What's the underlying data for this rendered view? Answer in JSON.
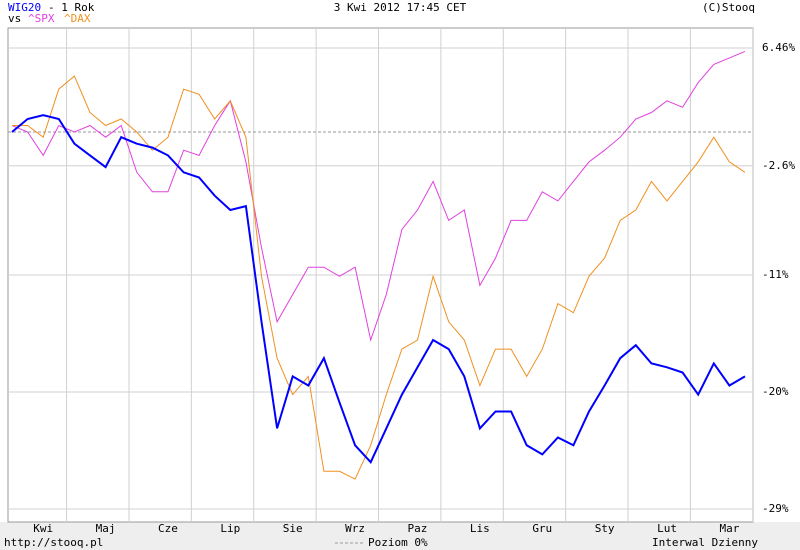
{
  "chart_data": {
    "type": "line",
    "title": "3 Kwi 2012 17:45 CET",
    "subtitle": "- 1 Rok",
    "vs_label": "vs",
    "copyright": "(C)Stooq",
    "source": "http://stooq.pl",
    "interval": "Interwal Dzienny",
    "reference": {
      "value": 0,
      "label": "Poziom 0%"
    },
    "categories": [
      null,
      null,
      "Kwi",
      null,
      null,
      null,
      "Maj",
      null,
      null,
      null,
      "Cze",
      null,
      null,
      null,
      "Lip",
      null,
      null,
      null,
      "Sie",
      null,
      null,
      null,
      "Wrz",
      null,
      null,
      null,
      "Paz",
      null,
      null,
      null,
      "Lis",
      null,
      null,
      null,
      "Gru",
      null,
      null,
      null,
      "Sty",
      null,
      null,
      null,
      "Lut",
      null,
      null,
      null,
      "Mar",
      null
    ],
    "series": [
      {
        "name": "WIG20",
        "color": "#0000ff",
        "values": [
          0.0,
          1.0,
          1.3,
          1.0,
          -0.9,
          -1.8,
          -2.7,
          -0.4,
          -0.9,
          -1.2,
          -1.8,
          -3.1,
          -3.5,
          -4.9,
          -6.0,
          -5.7,
          -14.6,
          -22.8,
          -18.8,
          -19.5,
          -17.4,
          -20.8,
          -24.1,
          -25.4,
          -22.8,
          -20.2,
          -18.1,
          -16.0,
          -16.7,
          -18.8,
          -22.8,
          -21.5,
          -21.5,
          -24.1,
          -24.8,
          -23.5,
          -24.1,
          -21.5,
          -19.5,
          -17.4,
          -16.4,
          -17.8,
          -18.1,
          -18.5,
          -20.2,
          -17.8,
          -19.5,
          -18.8
        ]
      },
      {
        "name": "^SPX",
        "color": "#e040e0",
        "values": [
          0.5,
          0.0,
          -1.8,
          0.5,
          0.0,
          0.5,
          -0.4,
          0.5,
          -3.1,
          -4.6,
          -4.6,
          -1.4,
          -1.8,
          0.5,
          2.4,
          -2.3,
          -8.9,
          -14.6,
          -12.5,
          -10.4,
          -10.4,
          -11.1,
          -10.4,
          -16.0,
          -12.5,
          -7.5,
          -6.0,
          -3.8,
          -6.8,
          -6.0,
          -11.8,
          -9.7,
          -6.8,
          -6.8,
          -4.6,
          -5.3,
          -3.8,
          -2.3,
          -1.4,
          -0.4,
          1.0,
          1.5,
          2.4,
          1.9,
          3.8,
          5.2,
          5.7,
          6.2
        ]
      },
      {
        "name": "^DAX",
        "color": "#f09020",
        "values": [
          0.5,
          0.5,
          -0.4,
          3.3,
          4.3,
          1.5,
          0.5,
          1.0,
          0.0,
          -1.4,
          -0.4,
          3.3,
          2.9,
          1.0,
          2.4,
          -0.4,
          -11.1,
          -17.4,
          -20.2,
          -18.8,
          -26.1,
          -26.1,
          -26.7,
          -24.1,
          -20.2,
          -16.7,
          -16.0,
          -11.1,
          -14.6,
          -16.0,
          -19.5,
          -16.7,
          -16.7,
          -18.8,
          -16.7,
          -13.2,
          -13.9,
          -11.1,
          -9.7,
          -6.8,
          -6.0,
          -3.8,
          -5.3,
          -3.8,
          -2.3,
          -0.4,
          -2.3,
          -3.1
        ]
      }
    ],
    "ylim": [
      -30,
      8
    ],
    "yticks": [
      {
        "value": 6.46,
        "label": "6.46%"
      },
      {
        "value": -2.6,
        "label": "-2.6%"
      },
      {
        "value": -11,
        "label": "-11%"
      },
      {
        "value": -20,
        "label": "-20%"
      },
      {
        "value": -29,
        "label": "-29%"
      }
    ],
    "grid": true
  }
}
